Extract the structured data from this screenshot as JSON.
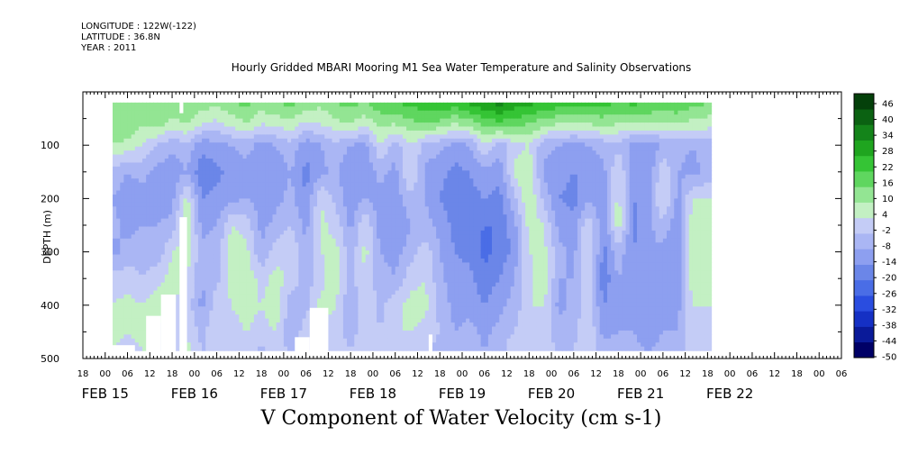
{
  "header": {
    "longitude": "LONGITUDE : 122W(-122)",
    "latitude": "LATITUDE : 36.8N",
    "year": "YEAR : 2011",
    "title": "Hourly Gridded MBARI Mooring M1 Sea Water Temperature and Salinity Observations"
  },
  "chart_data": {
    "type": "heatmap",
    "title": "Hourly Gridded MBARI Mooring M1 Sea Water Temperature and Salinity Observations",
    "xlabel": "V Component of Water Velocity (cm s-1)",
    "ylabel": "DEPTH (m)",
    "x_unit": "hours since 2011-02-14 18:00",
    "xlim": [
      0,
      204
    ],
    "ylim": [
      500,
      0
    ],
    "y_reversed": true,
    "hour_ticks": [
      {
        "h": 0,
        "label": "18"
      },
      {
        "h": 6,
        "label": "00"
      },
      {
        "h": 12,
        "label": "06"
      },
      {
        "h": 18,
        "label": "12"
      },
      {
        "h": 24,
        "label": "18"
      },
      {
        "h": 30,
        "label": "00"
      },
      {
        "h": 36,
        "label": "06"
      },
      {
        "h": 42,
        "label": "12"
      },
      {
        "h": 48,
        "label": "18"
      },
      {
        "h": 54,
        "label": "00"
      },
      {
        "h": 60,
        "label": "06"
      },
      {
        "h": 66,
        "label": "12"
      },
      {
        "h": 72,
        "label": "18"
      },
      {
        "h": 78,
        "label": "00"
      },
      {
        "h": 84,
        "label": "06"
      },
      {
        "h": 90,
        "label": "12"
      },
      {
        "h": 96,
        "label": "18"
      },
      {
        "h": 102,
        "label": "00"
      },
      {
        "h": 108,
        "label": "06"
      },
      {
        "h": 114,
        "label": "12"
      },
      {
        "h": 120,
        "label": "18"
      },
      {
        "h": 126,
        "label": "00"
      },
      {
        "h": 132,
        "label": "06"
      },
      {
        "h": 138,
        "label": "12"
      },
      {
        "h": 144,
        "label": "18"
      },
      {
        "h": 150,
        "label": "00"
      },
      {
        "h": 156,
        "label": "06"
      },
      {
        "h": 162,
        "label": "12"
      },
      {
        "h": 168,
        "label": "18"
      },
      {
        "h": 174,
        "label": "00"
      },
      {
        "h": 180,
        "label": "06"
      },
      {
        "h": 186,
        "label": "12"
      },
      {
        "h": 192,
        "label": "18"
      },
      {
        "h": 198,
        "label": "00"
      },
      {
        "h": 204,
        "label": "06"
      }
    ],
    "date_labels": [
      {
        "h": 6,
        "label": "FEB 15"
      },
      {
        "h": 30,
        "label": "FEB 16"
      },
      {
        "h": 54,
        "label": "FEB 17"
      },
      {
        "h": 78,
        "label": "FEB 18"
      },
      {
        "h": 102,
        "label": "FEB 19"
      },
      {
        "h": 126,
        "label": "FEB 20"
      },
      {
        "h": 150,
        "label": "FEB 21"
      },
      {
        "h": 174,
        "label": "FEB 22"
      }
    ],
    "depth_ticks": [
      100,
      200,
      300,
      400,
      500
    ],
    "data_extent": {
      "start_h": 8,
      "end_h": 169,
      "top_depth": 20,
      "bottom_depth": 485
    },
    "color_scale": {
      "levels": [
        -50,
        -44,
        -38,
        -32,
        -26,
        -20,
        -14,
        -8,
        -2,
        4,
        10,
        16,
        22,
        28,
        34,
        40,
        46
      ],
      "label_levels": [
        46,
        40,
        34,
        28,
        22,
        16,
        10,
        4,
        -2,
        -8,
        -14,
        -20,
        -26,
        -32,
        -38,
        -44,
        -50
      ],
      "colors": [
        "#000066",
        "#0a1a99",
        "#1530c4",
        "#2a4de0",
        "#4a6de6",
        "#6b86e8",
        "#8d9ff0",
        "#aab6f4",
        "#c4ccf6",
        "#c3f0c3",
        "#93e593",
        "#5fd65f",
        "#35c435",
        "#1fa51f",
        "#14841a",
        "#0b6212",
        "#04400a"
      ]
    },
    "columns": [
      {
        "h": 8,
        "v": [
          12,
          14,
          10,
          -4,
          -8,
          -6,
          -10,
          0,
          4,
          6,
          4
        ]
      },
      {
        "h": 12,
        "v": [
          14,
          16,
          8,
          -8,
          -12,
          -10,
          -6,
          2,
          6,
          4,
          2
        ]
      },
      {
        "h": 16,
        "v": [
          12,
          10,
          4,
          -6,
          -10,
          -8,
          -4,
          -2,
          4,
          6,
          4
        ]
      },
      {
        "h": 20,
        "v": [
          16,
          12,
          -2,
          -10,
          -12,
          -8,
          -6,
          2,
          8,
          6,
          4
        ]
      },
      {
        "h": 24,
        "v": [
          14,
          8,
          -6,
          -12,
          -10,
          -6,
          4,
          6,
          4,
          -2,
          2
        ]
      },
      {
        "h": 28,
        "v": [
          16,
          10,
          -4,
          -8,
          6,
          10,
          8,
          4,
          2,
          4,
          6
        ]
      },
      {
        "h": 32,
        "v": [
          14,
          4,
          -12,
          -18,
          -14,
          -10,
          -6,
          -8,
          -10,
          -4,
          -2
        ]
      },
      {
        "h": 36,
        "v": [
          12,
          2,
          -10,
          -16,
          -12,
          -8,
          -6,
          -4,
          2,
          4,
          -2
        ]
      },
      {
        "h": 40,
        "v": [
          16,
          6,
          -8,
          -12,
          -10,
          4,
          8,
          6,
          4,
          2,
          4
        ]
      },
      {
        "h": 44,
        "v": [
          18,
          10,
          -6,
          -10,
          -8,
          2,
          6,
          8,
          6,
          4,
          2
        ]
      },
      {
        "h": 48,
        "v": [
          14,
          4,
          -10,
          -14,
          -12,
          -10,
          -8,
          2,
          4,
          2,
          -4
        ]
      },
      {
        "h": 52,
        "v": [
          16,
          6,
          -8,
          -12,
          -10,
          -6,
          2,
          6,
          8,
          4,
          2
        ]
      },
      {
        "h": 56,
        "v": [
          18,
          8,
          -4,
          -8,
          -6,
          -2,
          4,
          2,
          -6,
          -8,
          -4
        ]
      },
      {
        "h": 60,
        "v": [
          14,
          2,
          -12,
          -16,
          -14,
          -10,
          -8,
          -6,
          -4,
          2,
          -2
        ]
      },
      {
        "h": 64,
        "v": [
          12,
          4,
          -8,
          -10,
          4,
          6,
          4,
          2,
          6,
          4,
          2
        ]
      },
      {
        "h": 68,
        "v": [
          16,
          8,
          -4,
          -6,
          -4,
          2,
          6,
          8,
          4,
          2,
          4
        ]
      },
      {
        "h": 72,
        "v": [
          18,
          10,
          -8,
          -14,
          -12,
          -10,
          -6,
          -4,
          -8,
          -6,
          -2
        ]
      },
      {
        "h": 76,
        "v": [
          16,
          6,
          -10,
          -12,
          -8,
          4,
          6,
          4,
          2,
          4,
          2
        ]
      },
      {
        "h": 80,
        "v": [
          20,
          12,
          4,
          -6,
          -10,
          -12,
          -8,
          -6,
          -4,
          -2,
          2
        ]
      },
      {
        "h": 84,
        "v": [
          22,
          10,
          -6,
          -10,
          -12,
          -14,
          -10,
          -8,
          2,
          4,
          2
        ]
      },
      {
        "h": 88,
        "v": [
          24,
          14,
          4,
          6,
          -4,
          -8,
          -6,
          2,
          6,
          4,
          2
        ]
      },
      {
        "h": 92,
        "v": [
          26,
          16,
          -4,
          -10,
          -8,
          -6,
          2,
          4,
          6,
          2,
          -2
        ]
      },
      {
        "h": 96,
        "v": [
          28,
          14,
          -6,
          -12,
          -14,
          -10,
          -8,
          -6,
          -4,
          -2,
          -4
        ]
      },
      {
        "h": 100,
        "v": [
          26,
          10,
          -10,
          -16,
          -18,
          -16,
          -14,
          -12,
          -10,
          -8,
          -6
        ]
      },
      {
        "h": 104,
        "v": [
          30,
          12,
          -8,
          -14,
          -16,
          -18,
          -16,
          -12,
          -10,
          -6,
          -4
        ]
      },
      {
        "h": 108,
        "v": [
          34,
          18,
          4,
          -10,
          -14,
          -20,
          -22,
          -18,
          -14,
          -10,
          -8
        ]
      },
      {
        "h": 112,
        "v": [
          36,
          20,
          -6,
          -12,
          -16,
          -20,
          -18,
          -14,
          -10,
          -6,
          -4
        ]
      },
      {
        "h": 116,
        "v": [
          32,
          18,
          2,
          6,
          -4,
          -10,
          -12,
          -8,
          -6,
          -2,
          2
        ]
      },
      {
        "h": 120,
        "v": [
          30,
          16,
          4,
          8,
          10,
          6,
          4,
          2,
          4,
          2,
          4
        ]
      },
      {
        "h": 124,
        "v": [
          28,
          12,
          -6,
          -10,
          -4,
          4,
          6,
          8,
          4,
          2,
          4
        ]
      },
      {
        "h": 128,
        "v": [
          26,
          10,
          -8,
          -12,
          -14,
          -10,
          -6,
          -8,
          -10,
          -6,
          -4
        ]
      },
      {
        "h": 132,
        "v": [
          24,
          8,
          -10,
          -14,
          -16,
          -12,
          -10,
          -8,
          -6,
          -4,
          -2
        ]
      },
      {
        "h": 136,
        "v": [
          26,
          10,
          -8,
          -12,
          -10,
          4,
          6,
          4,
          2,
          4,
          2
        ]
      },
      {
        "h": 140,
        "v": [
          24,
          12,
          -6,
          -10,
          -12,
          -14,
          -16,
          -18,
          -14,
          -10,
          -6
        ]
      },
      {
        "h": 144,
        "v": [
          22,
          10,
          -4,
          4,
          6,
          8,
          -4,
          -8,
          -10,
          -8,
          -4
        ]
      },
      {
        "h": 148,
        "v": [
          24,
          8,
          -10,
          -12,
          -14,
          -16,
          -14,
          -12,
          -10,
          -8,
          -6
        ]
      },
      {
        "h": 152,
        "v": [
          22,
          10,
          -12,
          -14,
          -12,
          -10,
          -8,
          -12,
          -14,
          -12,
          -8
        ]
      },
      {
        "h": 156,
        "v": [
          20,
          8,
          -8,
          4,
          6,
          -4,
          -10,
          -12,
          -10,
          -8,
          -6
        ]
      },
      {
        "h": 160,
        "v": [
          22,
          10,
          -6,
          -8,
          -10,
          -12,
          -14,
          -12,
          -10,
          -8,
          -4
        ]
      },
      {
        "h": 164,
        "v": [
          18,
          8,
          -8,
          -10,
          4,
          8,
          10,
          8,
          4,
          2,
          2
        ]
      },
      {
        "h": 169,
        "v": [
          16,
          6,
          -4,
          -6,
          4,
          6,
          8,
          6,
          4,
          2,
          4
        ]
      }
    ],
    "row_depths": [
      20,
      60,
      100,
      150,
      200,
      250,
      300,
      350,
      400,
      450,
      485
    ],
    "missing_regions": [
      {
        "h0": 8,
        "h1": 14,
        "d0": 475,
        "d1": 500
      },
      {
        "h0": 17,
        "h1": 21,
        "d0": 420,
        "d1": 500
      },
      {
        "h0": 21,
        "h1": 25,
        "d0": 380,
        "d1": 500
      },
      {
        "h0": 26,
        "h1": 28,
        "d0": 235,
        "d1": 500
      },
      {
        "h0": 26,
        "h1": 27,
        "d0": 0,
        "d1": 40
      },
      {
        "h0": 57,
        "h1": 61,
        "d0": 460,
        "d1": 500
      },
      {
        "h0": 61,
        "h1": 66,
        "d0": 405,
        "d1": 500
      },
      {
        "h0": 93,
        "h1": 94,
        "d0": 455,
        "d1": 500
      }
    ]
  }
}
